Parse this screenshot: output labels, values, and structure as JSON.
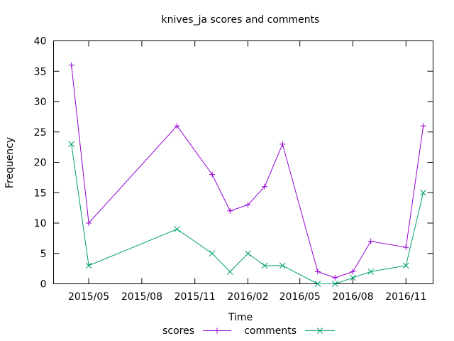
{
  "chart_data": {
    "type": "line",
    "title": "knives_ja scores and comments",
    "xlabel": "Time",
    "ylabel": "Frequency",
    "ylim": [
      0,
      40
    ],
    "yticks": [
      0,
      5,
      10,
      15,
      20,
      25,
      30,
      35,
      40
    ],
    "xlim": [
      "2015-03-01",
      "2016-12-18"
    ],
    "xticks": [
      {
        "date": "2015-05-01",
        "label": "2015/05"
      },
      {
        "date": "2015-08-01",
        "label": "2015/08"
      },
      {
        "date": "2015-11-01",
        "label": "2015/11"
      },
      {
        "date": "2016-02-01",
        "label": "2016/02"
      },
      {
        "date": "2016-05-01",
        "label": "2016/05"
      },
      {
        "date": "2016-08-01",
        "label": "2016/08"
      },
      {
        "date": "2016-11-01",
        "label": "2016/11"
      }
    ],
    "grid": false,
    "legend_position": "bottom",
    "x": [
      "2015-04-01",
      "2015-05-01",
      "2015-10-01",
      "2015-12-01",
      "2016-01-01",
      "2016-02-01",
      "2016-03-01",
      "2016-04-01",
      "2016-06-01",
      "2016-07-01",
      "2016-08-01",
      "2016-09-01",
      "2016-11-01",
      "2016-12-01"
    ],
    "series": [
      {
        "name": "scores",
        "color": "#9400d3",
        "marker": "plus",
        "values": [
          36,
          10,
          26,
          18,
          12,
          13,
          16,
          23,
          2,
          1,
          2,
          7,
          6,
          26
        ]
      },
      {
        "name": "comments",
        "color": "#009e73",
        "marker": "cross",
        "values": [
          23,
          3,
          9,
          5,
          2,
          5,
          3,
          3,
          0,
          0,
          1,
          2,
          3,
          15
        ]
      }
    ]
  }
}
